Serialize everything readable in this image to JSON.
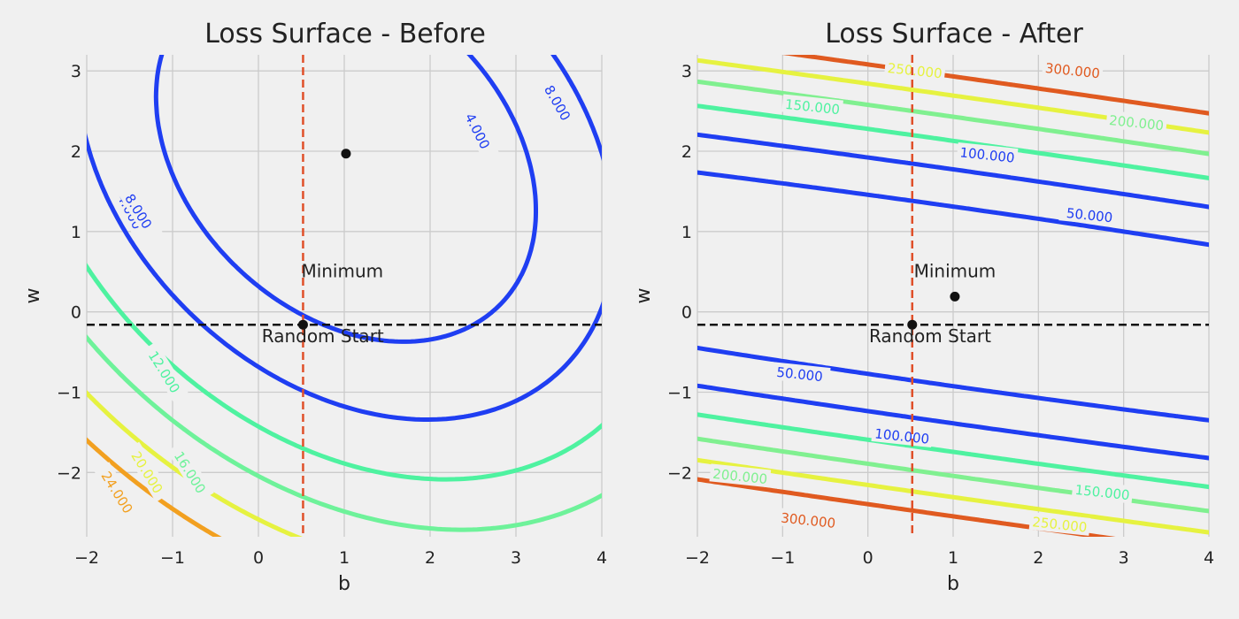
{
  "chart_data": [
    {
      "type": "contour",
      "title": "Loss Surface - Before",
      "xlabel": "b",
      "ylabel": "w",
      "xlim": [
        -2,
        4
      ],
      "ylim": [
        -2.8,
        3.2
      ],
      "xticks": [
        -2,
        -1,
        0,
        1,
        2,
        3,
        4
      ],
      "yticks": [
        -2,
        -1,
        0,
        1,
        2,
        3
      ],
      "xtick_labels": [
        "−2",
        "−1",
        "0",
        "1",
        "2",
        "3",
        "4"
      ],
      "ytick_labels": [
        "−2",
        "−1",
        "0",
        "1",
        "2",
        "3"
      ],
      "grid": true,
      "contour_levels": [
        {
          "level": 4,
          "label": "4.000",
          "color": "#1f3ef2"
        },
        {
          "level": 8,
          "label": "8.000",
          "color": "#1f3ef2"
        },
        {
          "level": 12,
          "label": "12.000",
          "color": "#4ef2a0"
        },
        {
          "level": 16,
          "label": "16.000",
          "color": "#6ef29a"
        },
        {
          "level": 20,
          "label": "20.000",
          "color": "#e6f240"
        },
        {
          "level": 24,
          "label": "24.000",
          "color": "#f2a020"
        }
      ],
      "points": [
        {
          "name": "Minimum",
          "b": 1.02,
          "w": 1.97
        },
        {
          "name": "Random Start",
          "b": 0.52,
          "w": -0.16
        }
      ],
      "vline": {
        "b": 0.52,
        "color": "#e0502a"
      },
      "hline": {
        "w": -0.16,
        "color": "#111111"
      },
      "annotations": [
        {
          "text": "Minimum",
          "b": 0.52,
          "w": 0.43
        },
        {
          "text": "Random Start",
          "b": 0.75,
          "w": -0.38
        }
      ]
    },
    {
      "type": "contour",
      "title": "Loss Surface - After",
      "xlabel": "b",
      "ylabel": "w",
      "xlim": [
        -2,
        4
      ],
      "ylim": [
        -2.8,
        3.2
      ],
      "xticks": [
        -2,
        -1,
        0,
        1,
        2,
        3,
        4
      ],
      "yticks": [
        -2,
        -1,
        0,
        1,
        2,
        3
      ],
      "xtick_labels": [
        "−2",
        "−1",
        "0",
        "1",
        "2",
        "3",
        "4"
      ],
      "ytick_labels": [
        "−2",
        "−1",
        "0",
        "1",
        "2",
        "3"
      ],
      "grid": true,
      "contour_levels": [
        {
          "level": 50,
          "label": "50.000",
          "color": "#1f3ef2"
        },
        {
          "level": 100,
          "label": "100.000",
          "color": "#1f3ef2"
        },
        {
          "level": 150,
          "label": "150.000",
          "color": "#4ef2a0"
        },
        {
          "level": 200,
          "label": "200.000",
          "color": "#80f090"
        },
        {
          "level": 250,
          "label": "250.000",
          "color": "#e6f240"
        },
        {
          "level": 300,
          "label": "300.000",
          "color": "#e05a20"
        }
      ],
      "points": [
        {
          "name": "Minimum",
          "b": 1.02,
          "w": 0.19
        },
        {
          "name": "Random Start",
          "b": 0.52,
          "w": -0.16
        }
      ],
      "vline": {
        "b": 0.52,
        "color": "#e0502a"
      },
      "hline": {
        "w": -0.16,
        "color": "#111111"
      },
      "annotations": [
        {
          "text": "Minimum",
          "b": 1.0,
          "w": 0.43
        },
        {
          "text": "Random Start",
          "b": 0.73,
          "w": -0.38
        }
      ]
    }
  ]
}
